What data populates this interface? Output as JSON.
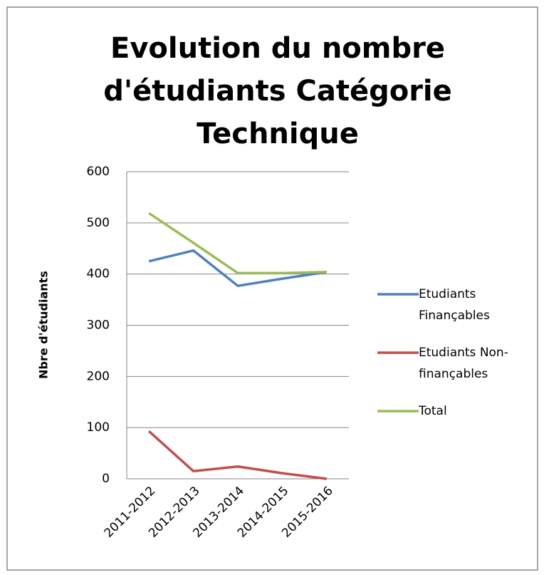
{
  "chart_data": {
    "type": "line",
    "title": "Evolution du nombre d'étudiants Catégorie Technique",
    "y_label": "Nbre d'étudiants",
    "categories": [
      "2011-2012",
      "2012-2013",
      "2013-2014",
      "2014-2015",
      "2015-2016"
    ],
    "series": [
      {
        "name": "Etudiants Finançables",
        "color": "#4f81bd",
        "values": [
          425,
          446,
          377,
          391,
          404
        ]
      },
      {
        "name": "Etudiants Non-finançables",
        "color": "#c0504d",
        "values": [
          93,
          15,
          24,
          11,
          0
        ]
      },
      {
        "name": "Total",
        "color": "#9bbb59",
        "values": [
          519,
          461,
          402,
          402,
          404
        ]
      }
    ],
    "ylim": [
      0,
      600
    ],
    "yticks": [
      0,
      100,
      200,
      300,
      400,
      500,
      600
    ],
    "grid": true,
    "legend": "right"
  }
}
